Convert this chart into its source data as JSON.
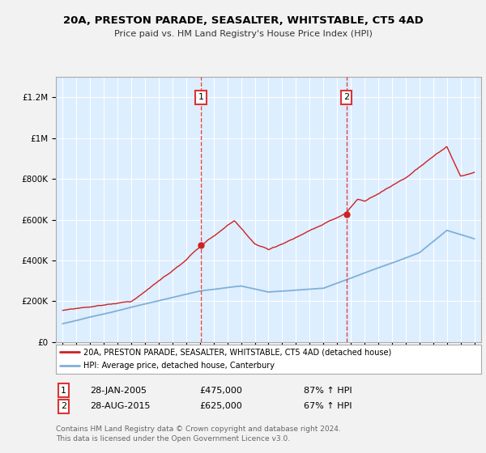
{
  "title1": "20A, PRESTON PARADE, SEASALTER, WHITSTABLE, CT5 4AD",
  "title2": "Price paid vs. HM Land Registry's House Price Index (HPI)",
  "red_label": "20A, PRESTON PARADE, SEASALTER, WHITSTABLE, CT5 4AD (detached house)",
  "blue_label": "HPI: Average price, detached house, Canterbury",
  "annotation1": {
    "num": "1",
    "date": "28-JAN-2005",
    "price": "£475,000",
    "pct": "87% ↑ HPI"
  },
  "annotation2": {
    "num": "2",
    "date": "28-AUG-2015",
    "price": "£625,000",
    "pct": "67% ↑ HPI"
  },
  "footnote1": "Contains HM Land Registry data © Crown copyright and database right 2024.",
  "footnote2": "This data is licensed under the Open Government Licence v3.0.",
  "vline1_x": 2005.08,
  "vline2_x": 2015.67,
  "dot1_x": 2005.08,
  "dot1_y": 475000,
  "dot2_x": 2015.67,
  "dot2_y": 625000,
  "ylim": [
    0,
    1300000
  ],
  "xlim": [
    1994.5,
    2025.5
  ],
  "bg_color": "#ddeeff",
  "outer_bg": "#f2f2f2",
  "red_color": "#cc2222",
  "blue_color": "#7fb0d8",
  "vline_color": "#dd3333",
  "grid_color": "#ffffff"
}
